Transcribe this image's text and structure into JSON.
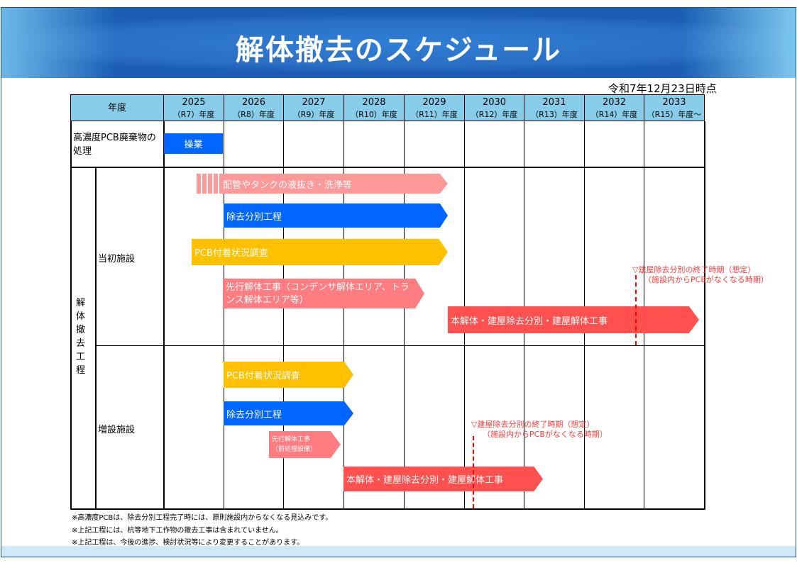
{
  "title": "解体撤去のスケジュール",
  "as_of": "令和7年12月23日時点",
  "header": {
    "label": "年度",
    "years": [
      {
        "year": "2025",
        "era": "（R7）年度"
      },
      {
        "year": "2026",
        "era": "（R8）年度"
      },
      {
        "year": "2027",
        "era": "（R9）年度"
      },
      {
        "year": "2028",
        "era": "（R10）年度"
      },
      {
        "year": "2029",
        "era": "（R11）年度"
      },
      {
        "year": "2030",
        "era": "（R12）年度"
      },
      {
        "year": "2031",
        "era": "（R13）年度"
      },
      {
        "year": "2032",
        "era": "（R14）年度"
      },
      {
        "year": "2033",
        "era": "（R15）年度～"
      }
    ]
  },
  "rows": {
    "pcb": "高濃度PCB廃棄物の処理",
    "group": "解体撤去工程",
    "original": "当初施設",
    "expansion": "増設施設"
  },
  "bars": {
    "operation": "操業",
    "orig_drain": "配管やタンクの液抜き・洗浄等",
    "orig_sort": "除去分別工程",
    "orig_survey": "PCB付着状況調査",
    "orig_pre": "先行解体工事（コンデンサ解体エリア、トランス解体エリア等）",
    "orig_main": "本解体・建屋除去分別・建屋解体工事",
    "exp_survey": "PCB付着状況調査",
    "exp_sort": "除去分別工程",
    "exp_pre_1": "先行解体工事",
    "exp_pre_2": "（前処理設備）",
    "exp_main": "本解体・建屋除去分別・建屋解体工事"
  },
  "annotation": {
    "line1": "▽建屋除去分別の終了時期（想定）",
    "line2": "（施設内からPCBがなくなる時期）"
  },
  "notes": [
    "※高濃度PCBは、除去分別工程完了時には、原則施設内からなくなる見込みです。",
    "※上記工程には、杭等地下工作物の撤去工事は含まれていません。",
    "※上記工程は、今後の進捗、検討状況等により変更することがあります。"
  ],
  "colors": {
    "blue": "#0066ff",
    "yellow": "#ffc000",
    "pink": "#ff9999",
    "salmon": "#ff7c80",
    "red": "#ff5050",
    "header": "#87cdea"
  }
}
